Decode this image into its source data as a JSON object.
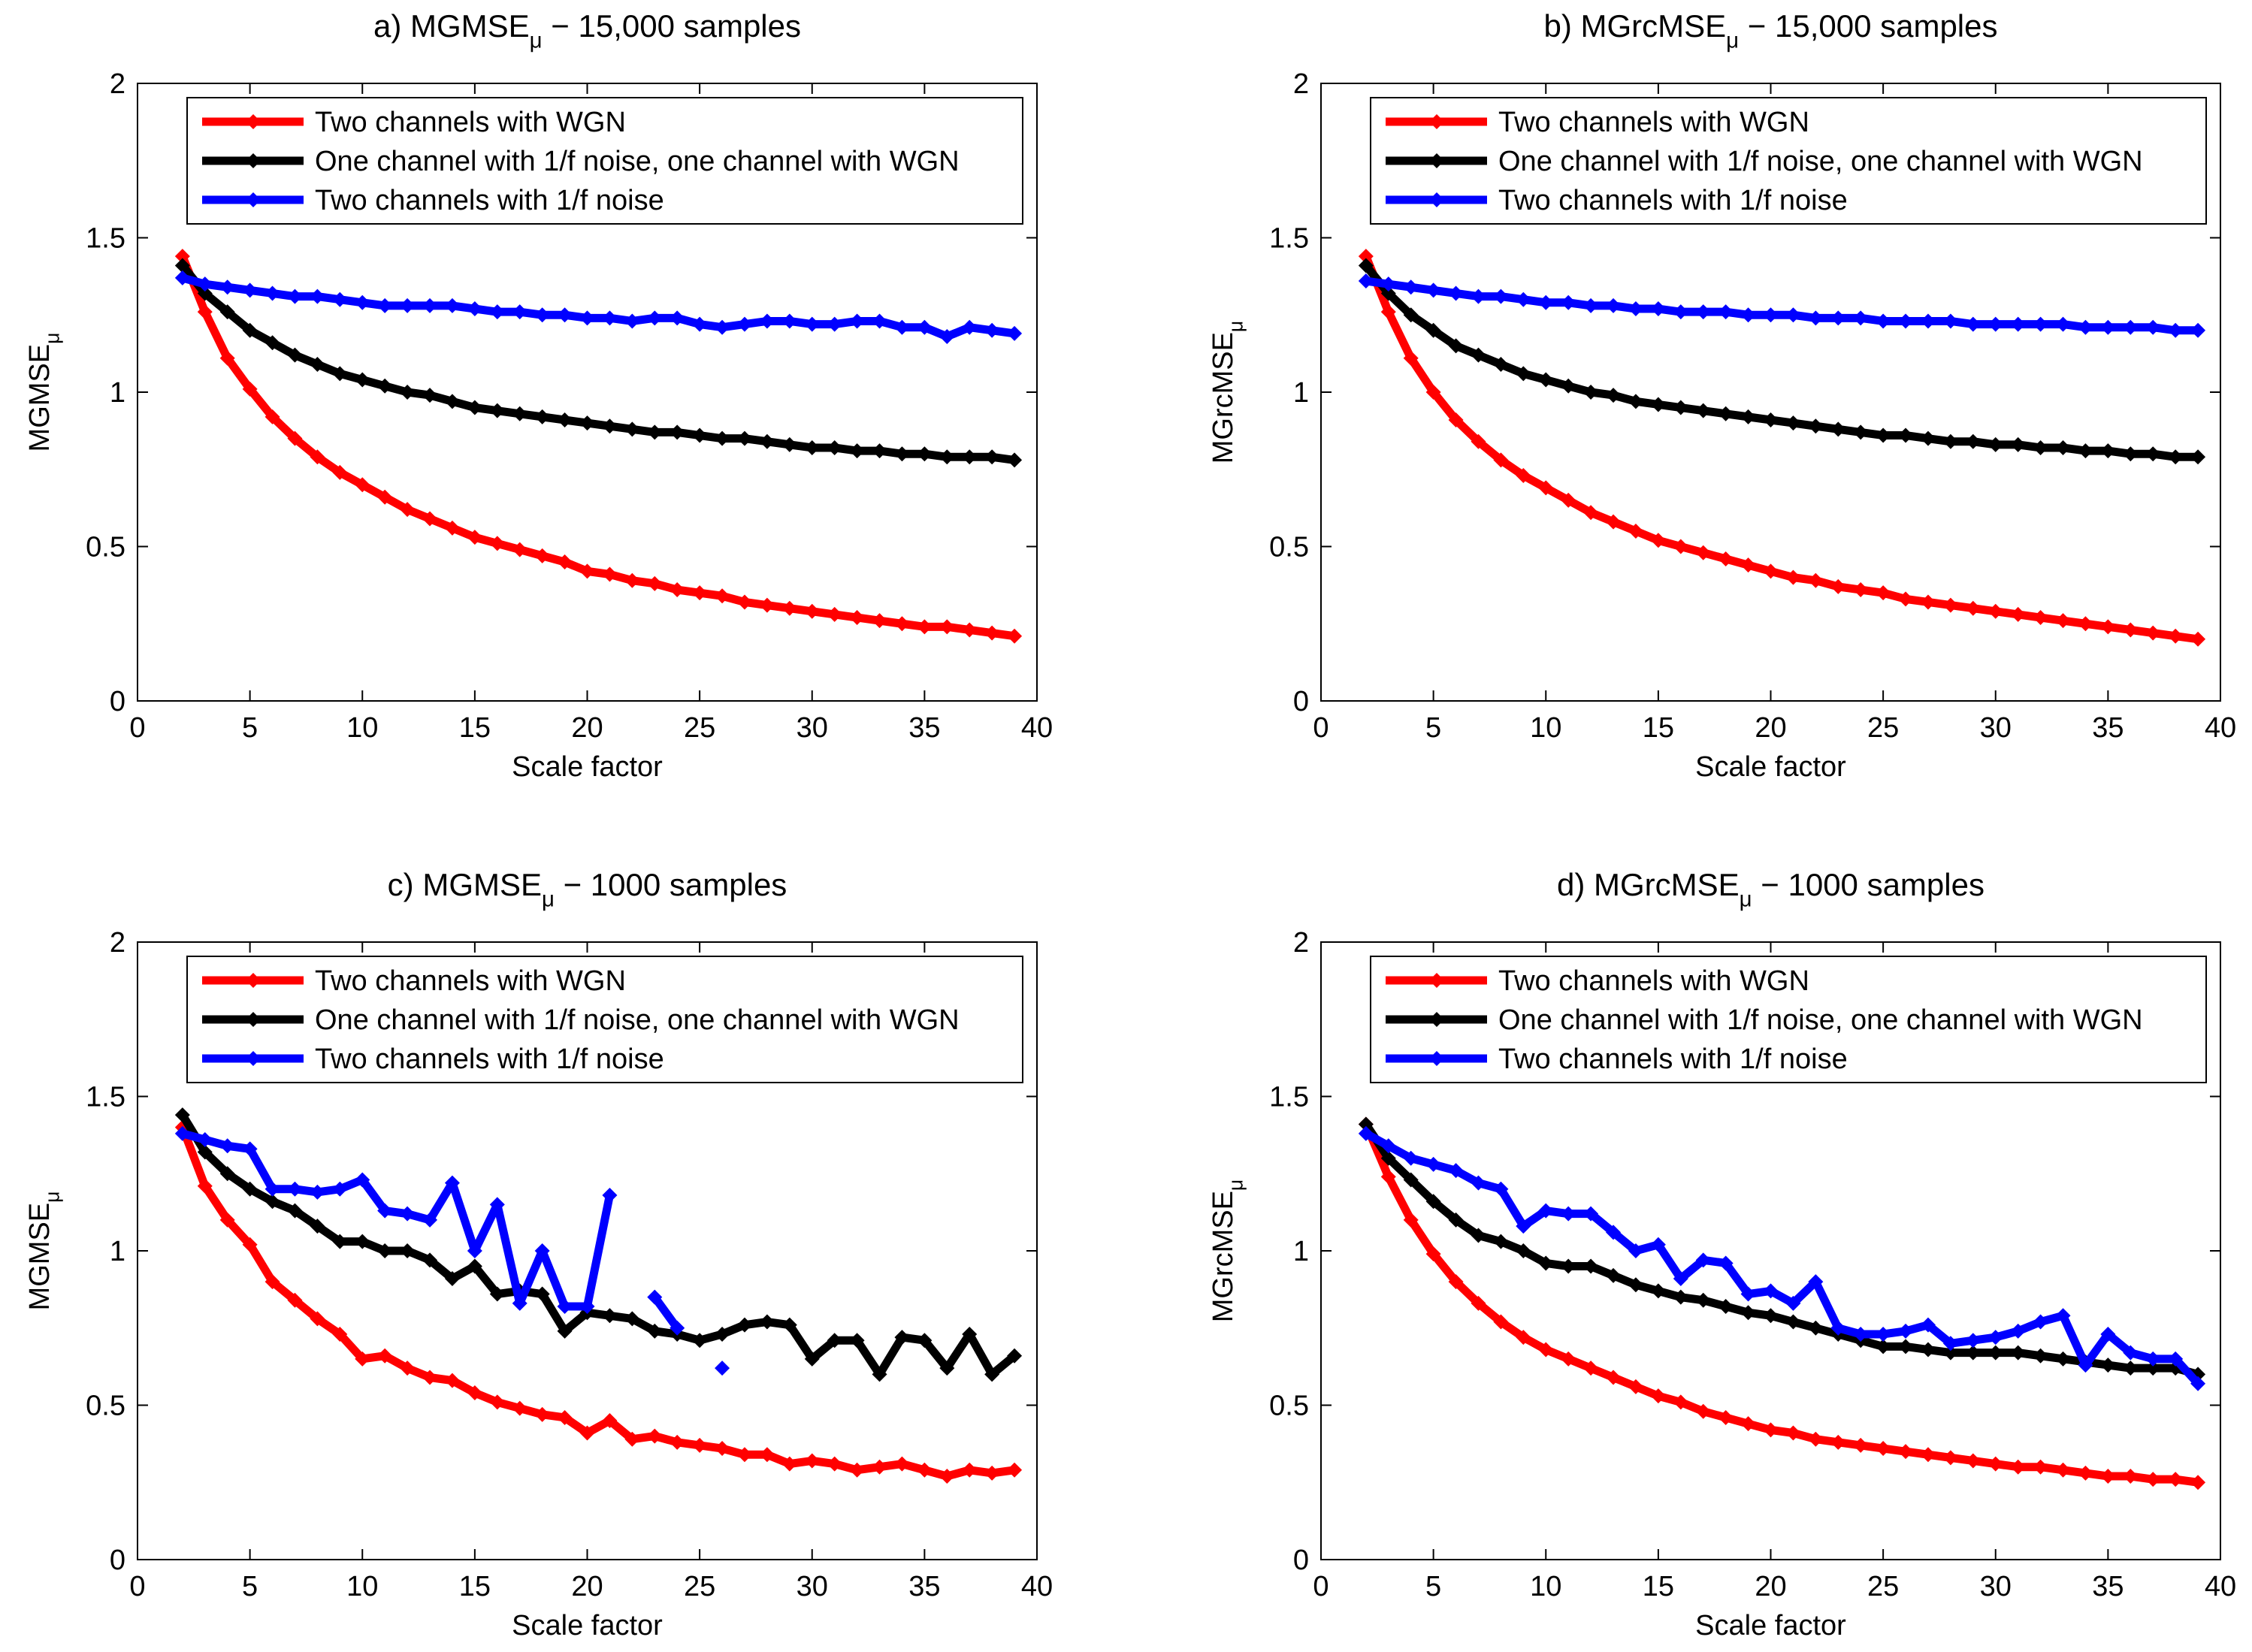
{
  "chart_data": [
    {
      "type": "line",
      "title": [
        "a) MGMSE",
        "μ",
        " − 15,000 samples"
      ],
      "xlabel": "Scale factor",
      "ylabel": [
        "MGMSE",
        "μ"
      ],
      "x": [
        2,
        3,
        4,
        5,
        6,
        7,
        8,
        9,
        10,
        11,
        12,
        13,
        14,
        15,
        16,
        17,
        18,
        19,
        20,
        21,
        22,
        23,
        24,
        25,
        26,
        27,
        28,
        29,
        30,
        31,
        32,
        33,
        34,
        35,
        36,
        37,
        38,
        39
      ],
      "xlim": [
        0,
        40
      ],
      "xticks": [
        0,
        5,
        10,
        15,
        20,
        25,
        30,
        35,
        40
      ],
      "ylim": [
        0,
        2
      ],
      "yticks": [
        0,
        0.5,
        1,
        1.5,
        2
      ],
      "grid": false,
      "legend": "upper right",
      "series": [
        {
          "name": "Two channels with WGN",
          "color": "#ff0000",
          "values": [
            1.44,
            1.26,
            1.11,
            1.01,
            0.92,
            0.85,
            0.79,
            0.74,
            0.7,
            0.66,
            0.62,
            0.59,
            0.56,
            0.53,
            0.51,
            0.49,
            0.47,
            0.45,
            0.42,
            0.41,
            0.39,
            0.38,
            0.36,
            0.35,
            0.34,
            0.32,
            0.31,
            0.3,
            0.29,
            0.28,
            0.27,
            0.26,
            0.25,
            0.24,
            0.24,
            0.23,
            0.22,
            0.21
          ]
        },
        {
          "name": "One channel with 1/f noise, one channel with WGN",
          "color": "#000000",
          "values": [
            1.41,
            1.32,
            1.26,
            1.2,
            1.16,
            1.12,
            1.09,
            1.06,
            1.04,
            1.02,
            1.0,
            0.99,
            0.97,
            0.95,
            0.94,
            0.93,
            0.92,
            0.91,
            0.9,
            0.89,
            0.88,
            0.87,
            0.87,
            0.86,
            0.85,
            0.85,
            0.84,
            0.83,
            0.82,
            0.82,
            0.81,
            0.81,
            0.8,
            0.8,
            0.79,
            0.79,
            0.79,
            0.78
          ]
        },
        {
          "name": "Two channels with 1/f noise",
          "color": "#0000ff",
          "values": [
            1.37,
            1.35,
            1.34,
            1.33,
            1.32,
            1.31,
            1.31,
            1.3,
            1.29,
            1.28,
            1.28,
            1.28,
            1.28,
            1.27,
            1.26,
            1.26,
            1.25,
            1.25,
            1.24,
            1.24,
            1.23,
            1.24,
            1.24,
            1.22,
            1.21,
            1.22,
            1.23,
            1.23,
            1.22,
            1.22,
            1.23,
            1.23,
            1.21,
            1.21,
            1.18,
            1.21,
            1.2,
            1.19
          ]
        }
      ]
    },
    {
      "type": "line",
      "title": [
        "b) MGrcMSE",
        "μ",
        " − 15,000 samples"
      ],
      "xlabel": "Scale factor",
      "ylabel": [
        "MGrcMSE",
        "μ"
      ],
      "x": [
        2,
        3,
        4,
        5,
        6,
        7,
        8,
        9,
        10,
        11,
        12,
        13,
        14,
        15,
        16,
        17,
        18,
        19,
        20,
        21,
        22,
        23,
        24,
        25,
        26,
        27,
        28,
        29,
        30,
        31,
        32,
        33,
        34,
        35,
        36,
        37,
        38,
        39
      ],
      "xlim": [
        0,
        40
      ],
      "xticks": [
        0,
        5,
        10,
        15,
        20,
        25,
        30,
        35,
        40
      ],
      "ylim": [
        0,
        2
      ],
      "yticks": [
        0,
        0.5,
        1,
        1.5,
        2
      ],
      "grid": false,
      "legend": "upper right",
      "series": [
        {
          "name": "Two channels with WGN",
          "color": "#ff0000",
          "values": [
            1.44,
            1.26,
            1.11,
            1.0,
            0.91,
            0.84,
            0.78,
            0.73,
            0.69,
            0.65,
            0.61,
            0.58,
            0.55,
            0.52,
            0.5,
            0.48,
            0.46,
            0.44,
            0.42,
            0.4,
            0.39,
            0.37,
            0.36,
            0.35,
            0.33,
            0.32,
            0.31,
            0.3,
            0.29,
            0.28,
            0.27,
            0.26,
            0.25,
            0.24,
            0.23,
            0.22,
            0.21,
            0.2
          ]
        },
        {
          "name": "One channel with 1/f noise, one channel with WGN",
          "color": "#000000",
          "values": [
            1.41,
            1.32,
            1.25,
            1.2,
            1.15,
            1.12,
            1.09,
            1.06,
            1.04,
            1.02,
            1.0,
            0.99,
            0.97,
            0.96,
            0.95,
            0.94,
            0.93,
            0.92,
            0.91,
            0.9,
            0.89,
            0.88,
            0.87,
            0.86,
            0.86,
            0.85,
            0.84,
            0.84,
            0.83,
            0.83,
            0.82,
            0.82,
            0.81,
            0.81,
            0.8,
            0.8,
            0.79,
            0.79
          ]
        },
        {
          "name": "Two channels with 1/f noise",
          "color": "#0000ff",
          "values": [
            1.36,
            1.35,
            1.34,
            1.33,
            1.32,
            1.31,
            1.31,
            1.3,
            1.29,
            1.29,
            1.28,
            1.28,
            1.27,
            1.27,
            1.26,
            1.26,
            1.26,
            1.25,
            1.25,
            1.25,
            1.24,
            1.24,
            1.24,
            1.23,
            1.23,
            1.23,
            1.23,
            1.22,
            1.22,
            1.22,
            1.22,
            1.22,
            1.21,
            1.21,
            1.21,
            1.21,
            1.2,
            1.2
          ]
        }
      ]
    },
    {
      "type": "line",
      "title": [
        "c) MGMSE",
        "μ",
        " − 1000 samples"
      ],
      "xlabel": "Scale factor",
      "ylabel": [
        "MGMSE",
        "μ"
      ],
      "x": [
        2,
        3,
        4,
        5,
        6,
        7,
        8,
        9,
        10,
        11,
        12,
        13,
        14,
        15,
        16,
        17,
        18,
        19,
        20,
        21,
        22,
        23,
        24,
        25,
        26,
        27,
        28,
        29,
        30,
        31,
        32,
        33,
        34,
        35,
        36,
        37,
        38,
        39
      ],
      "xlim": [
        0,
        40
      ],
      "xticks": [
        0,
        5,
        10,
        15,
        20,
        25,
        30,
        35,
        40
      ],
      "ylim": [
        0,
        2
      ],
      "yticks": [
        0,
        0.5,
        1,
        1.5,
        2
      ],
      "grid": false,
      "legend": "upper right",
      "series": [
        {
          "name": "Two channels with WGN",
          "color": "#ff0000",
          "values": [
            1.4,
            1.21,
            1.1,
            1.02,
            0.9,
            0.84,
            0.78,
            0.73,
            0.65,
            0.66,
            0.62,
            0.59,
            0.58,
            0.54,
            0.51,
            0.49,
            0.47,
            0.46,
            0.41,
            0.45,
            0.39,
            0.4,
            0.38,
            0.37,
            0.36,
            0.34,
            0.34,
            0.31,
            0.32,
            0.31,
            0.29,
            0.3,
            0.31,
            0.29,
            0.27,
            0.29,
            0.28,
            0.29
          ]
        },
        {
          "name": "One channel with 1/f noise, one channel with WGN",
          "color": "#000000",
          "values": [
            1.44,
            1.32,
            1.25,
            1.2,
            1.16,
            1.13,
            1.08,
            1.03,
            1.03,
            1.0,
            1.0,
            0.97,
            0.91,
            0.95,
            0.86,
            0.87,
            0.86,
            0.74,
            0.8,
            0.79,
            0.78,
            0.74,
            0.73,
            0.71,
            0.73,
            0.76,
            0.77,
            0.76,
            0.65,
            0.71,
            0.71,
            0.6,
            0.72,
            0.71,
            0.62,
            0.73,
            0.6,
            0.66
          ]
        },
        {
          "name": "Two channels with 1/f noise",
          "color": "#0000ff",
          "values": [
            1.38,
            1.36,
            1.34,
            1.33,
            1.2,
            1.2,
            1.19,
            1.2,
            1.23,
            1.13,
            1.12,
            1.1,
            1.22,
            1.0,
            1.15,
            0.83,
            1.0,
            0.82,
            0.82,
            1.18,
            null,
            0.85,
            0.75,
            null,
            0.62,
            null,
            null,
            null,
            null,
            null,
            null,
            null,
            null,
            null,
            null,
            null,
            null,
            null
          ]
        }
      ]
    },
    {
      "type": "line",
      "title": [
        "d) MGrcMSE",
        "μ",
        " − 1000 samples"
      ],
      "xlabel": "Scale factor",
      "ylabel": [
        "MGrcMSE",
        "μ"
      ],
      "x": [
        2,
        3,
        4,
        5,
        6,
        7,
        8,
        9,
        10,
        11,
        12,
        13,
        14,
        15,
        16,
        17,
        18,
        19,
        20,
        21,
        22,
        23,
        24,
        25,
        26,
        27,
        28,
        29,
        30,
        31,
        32,
        33,
        34,
        35,
        36,
        37,
        38,
        39
      ],
      "xlim": [
        0,
        40
      ],
      "xticks": [
        0,
        5,
        10,
        15,
        20,
        25,
        30,
        35,
        40
      ],
      "ylim": [
        0,
        2
      ],
      "yticks": [
        0,
        0.5,
        1,
        1.5,
        2
      ],
      "grid": false,
      "legend": "upper right",
      "series": [
        {
          "name": "Two channels with WGN",
          "color": "#ff0000",
          "values": [
            1.41,
            1.24,
            1.1,
            0.99,
            0.9,
            0.83,
            0.77,
            0.72,
            0.68,
            0.65,
            0.62,
            0.59,
            0.56,
            0.53,
            0.51,
            0.48,
            0.46,
            0.44,
            0.42,
            0.41,
            0.39,
            0.38,
            0.37,
            0.36,
            0.35,
            0.34,
            0.33,
            0.32,
            0.31,
            0.3,
            0.3,
            0.29,
            0.28,
            0.27,
            0.27,
            0.26,
            0.26,
            0.25
          ]
        },
        {
          "name": "One channel with 1/f noise, one channel with WGN",
          "color": "#000000",
          "values": [
            1.41,
            1.3,
            1.23,
            1.16,
            1.1,
            1.05,
            1.03,
            1.0,
            0.96,
            0.95,
            0.95,
            0.92,
            0.89,
            0.87,
            0.85,
            0.84,
            0.82,
            0.8,
            0.79,
            0.77,
            0.75,
            0.73,
            0.71,
            0.69,
            0.69,
            0.68,
            0.67,
            0.67,
            0.67,
            0.67,
            0.66,
            0.65,
            0.64,
            0.63,
            0.62,
            0.62,
            0.62,
            0.6
          ]
        },
        {
          "name": "Two channels with 1/f noise",
          "color": "#0000ff",
          "values": [
            1.38,
            1.34,
            1.3,
            1.28,
            1.26,
            1.22,
            1.2,
            1.08,
            1.13,
            1.12,
            1.12,
            1.06,
            1.0,
            1.02,
            0.91,
            0.97,
            0.96,
            0.86,
            0.87,
            0.83,
            0.9,
            0.75,
            0.73,
            0.73,
            0.74,
            0.76,
            0.7,
            0.71,
            0.72,
            0.74,
            0.77,
            0.79,
            0.63,
            0.73,
            0.67,
            0.65,
            0.65,
            0.57
          ]
        }
      ]
    }
  ]
}
